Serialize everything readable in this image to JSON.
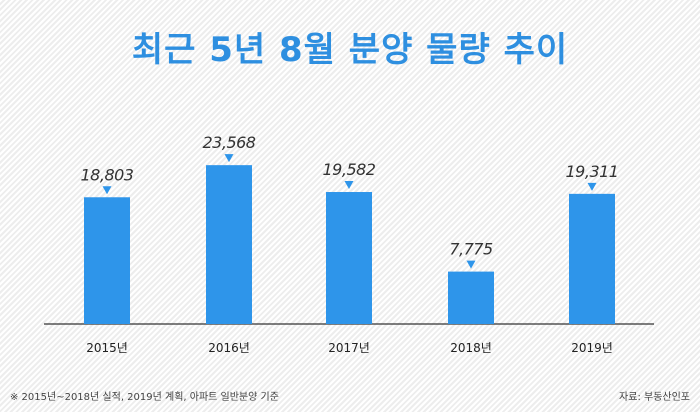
{
  "title": "최근 5년 8월 분양 물량 추이",
  "footnote": "※ 2015년~2018년 실적, 2019년 계획, 아파트 일반분양 기준",
  "source": "자료: 부동산인포",
  "colors": {
    "bar": "#2e95ea",
    "title": "#2e8fe0",
    "axis": "#333333",
    "label": "#333333"
  },
  "chart_data": {
    "type": "bar",
    "categories": [
      "2015년",
      "2016년",
      "2017년",
      "2018년",
      "2019년"
    ],
    "values": [
      18803,
      23568,
      19582,
      7775,
      19311
    ],
    "value_labels": [
      "18,803",
      "23,568",
      "19,582",
      "7,775",
      "19,311"
    ],
    "title": "최근 5년 8월 분양 물량 추이",
    "xlabel": "",
    "ylabel": "",
    "ylim": [
      0,
      25000
    ],
    "grid": false,
    "legend": "none"
  }
}
